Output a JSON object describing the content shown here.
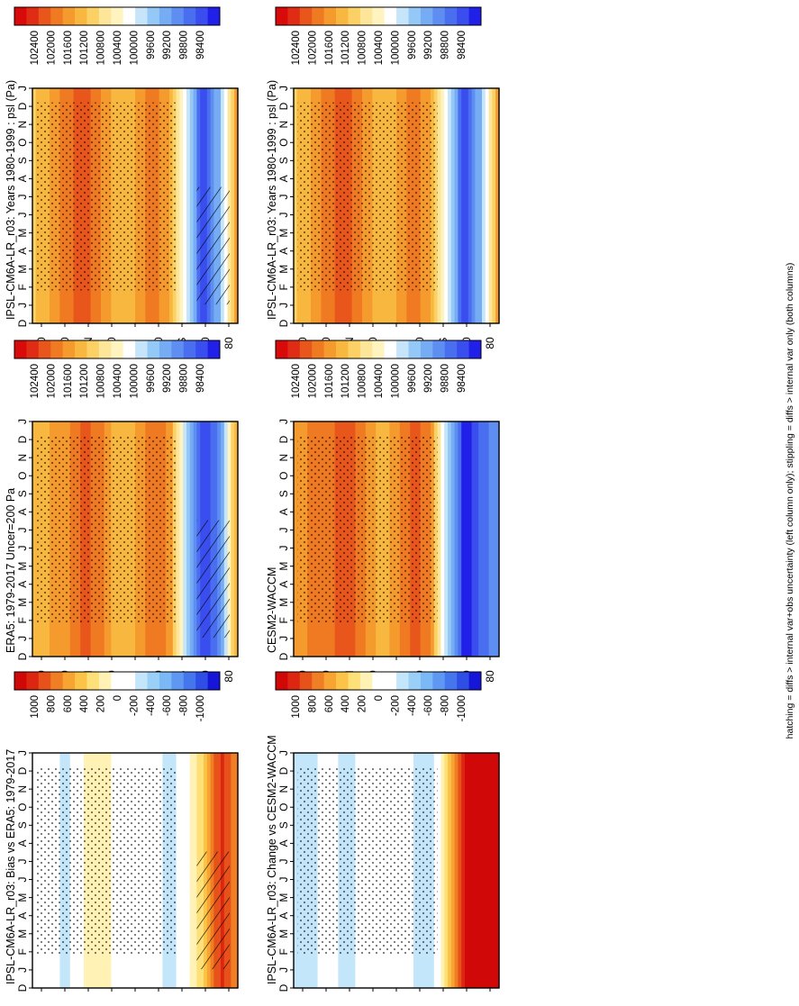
{
  "figure": {
    "footnote": "hatching = diffs > internal var+obs uncertainty (left column only); stippling = diffs > internal var only (both columns)"
  },
  "colors": {
    "abs_scale": [
      "#2020e8",
      "#3a4ef0",
      "#4a6ef0",
      "#5f8ef2",
      "#76acf4",
      "#94c8f6",
      "#c6e4fa",
      "#ffffff",
      "#fff4c0",
      "#fde69a",
      "#fbd065",
      "#f8b840",
      "#f59a2c",
      "#ef7a22",
      "#e8561c",
      "#e02c14",
      "#d80a0a"
    ],
    "diff_scale": [
      "#1616d8",
      "#2e4ee6",
      "#4676ee",
      "#5e98f2",
      "#7ab8f6",
      "#9ad0f8",
      "#c4e6fb",
      "#ffffff",
      "#ffffff",
      "#fff2b4",
      "#fde078",
      "#fbc448",
      "#f7a432",
      "#f07e24",
      "#e6521a",
      "#dc2612",
      "#d00808"
    ]
  },
  "chart_data": [
    {
      "type": "heatmap",
      "panel": "left-top",
      "title": "IPSL-CM6A-LR_r03: Years 1980-1999 : psl (Pa)",
      "xlabel": "",
      "ylabel": "",
      "x_ticks": [
        "D",
        "J",
        "F",
        "M",
        "A",
        "M",
        "J",
        "J",
        "A",
        "S",
        "O",
        "N",
        "D",
        "J"
      ],
      "y_ticks": [
        "80",
        "60",
        "°N",
        "20",
        "0",
        "20",
        "°S",
        "60",
        "80"
      ],
      "colorbar_ticks": [
        "102400",
        "102000",
        "101600",
        "101200",
        "100800",
        "100400",
        "100000",
        "99600",
        "99200",
        "98800",
        "98400"
      ],
      "colorbar_range": [
        98200,
        102600
      ],
      "hatching": true,
      "stippling": true,
      "latitudes": [
        90,
        75,
        60,
        45,
        30,
        15,
        0,
        -15,
        -30,
        -45,
        -60,
        -75,
        -90
      ],
      "values_by_latitude": [
        101000,
        101300,
        101700,
        102000,
        101600,
        101100,
        101300,
        101800,
        101300,
        100000,
        98500,
        99600,
        101600
      ]
    },
    {
      "type": "heatmap",
      "panel": "left-middle",
      "title": "ERA5: 1979-2017 Uncer=200 Pa",
      "xlabel": "",
      "ylabel": "",
      "x_ticks": [
        "D",
        "J",
        "F",
        "M",
        "A",
        "M",
        "J",
        "J",
        "A",
        "S",
        "O",
        "N",
        "D",
        "J"
      ],
      "y_ticks": [
        "80",
        "60",
        "°N",
        "20",
        "0",
        "20",
        "°S",
        "60",
        "80"
      ],
      "colorbar_ticks": [
        "102400",
        "102000",
        "101600",
        "101200",
        "100800",
        "100400",
        "100000",
        "99600",
        "99200",
        "98800",
        "98400"
      ],
      "colorbar_range": [
        98200,
        102600
      ],
      "hatching": true,
      "stippling": true,
      "latitudes": [
        90,
        75,
        60,
        45,
        30,
        15,
        0,
        -15,
        -30,
        -45,
        -60,
        -75,
        -90
      ],
      "values_by_latitude": [
        101100,
        101300,
        101500,
        101900,
        101700,
        101100,
        101300,
        101800,
        101500,
        99800,
        98400,
        99200,
        101500
      ]
    },
    {
      "type": "heatmap",
      "panel": "left-bottom",
      "title": "IPSL-CM6A-LR_r03: Bias vs ERA5: 1979-2017",
      "xlabel": "",
      "ylabel": "",
      "x_ticks": [
        "D",
        "J",
        "F",
        "M",
        "A",
        "M",
        "J",
        "J",
        "A",
        "S",
        "O",
        "N",
        "D",
        "J"
      ],
      "y_ticks": [
        "80",
        "60",
        "°N",
        "20",
        "0",
        "20",
        "°S",
        "60",
        "80"
      ],
      "colorbar_ticks": [
        "1000",
        "800",
        "600",
        "400",
        "200",
        "0",
        "-200",
        "-400",
        "-600",
        "-800",
        "-1000"
      ],
      "colorbar_range": [
        -1100,
        1100
      ],
      "hatching": true,
      "stippling": true,
      "latitudes": [
        90,
        75,
        60,
        45,
        30,
        15,
        0,
        -15,
        -30,
        -45,
        -60,
        -75,
        -90
      ],
      "values_by_latitude": [
        -100,
        0,
        -300,
        100,
        200,
        0,
        0,
        0,
        -300,
        0,
        300,
        900,
        600
      ]
    },
    {
      "type": "heatmap",
      "panel": "right-top",
      "title": "IPSL-CM6A-LR_r03: Years 1980-1999 : psl (Pa)",
      "xlabel": "",
      "ylabel": "",
      "x_ticks": [
        "D",
        "J",
        "F",
        "M",
        "A",
        "M",
        "J",
        "J",
        "A",
        "S",
        "O",
        "N",
        "D",
        "J"
      ],
      "y_ticks": [
        "80",
        "60",
        "°N",
        "20",
        "0",
        "20",
        "°S",
        "60",
        "80"
      ],
      "colorbar_ticks": [
        "102400",
        "102000",
        "101600",
        "101200",
        "100800",
        "100400",
        "100000",
        "99600",
        "99200",
        "98800",
        "98400"
      ],
      "colorbar_range": [
        98200,
        102600
      ],
      "hatching": false,
      "stippling": true,
      "latitudes": [
        90,
        75,
        60,
        45,
        30,
        15,
        0,
        -15,
        -30,
        -45,
        -60,
        -75,
        -90
      ],
      "values_by_latitude": [
        101000,
        101300,
        101700,
        102000,
        101600,
        101100,
        101300,
        101800,
        101300,
        100000,
        98500,
        99600,
        101600
      ]
    },
    {
      "type": "heatmap",
      "panel": "right-middle",
      "title": "CESM2-WACCM",
      "xlabel": "",
      "ylabel": "",
      "x_ticks": [
        "D",
        "J",
        "F",
        "M",
        "A",
        "M",
        "J",
        "J",
        "A",
        "S",
        "O",
        "N",
        "D",
        "J"
      ],
      "y_ticks": [
        "80",
        "60",
        "°N",
        "20",
        "0",
        "20",
        "°S",
        "60",
        "80"
      ],
      "colorbar_ticks": [
        "102400",
        "102000",
        "101600",
        "101200",
        "100800",
        "100400",
        "100000",
        "99600",
        "99200",
        "98800",
        "98400"
      ],
      "colorbar_range": [
        98200,
        102600
      ],
      "hatching": false,
      "stippling": true,
      "latitudes": [
        90,
        75,
        60,
        45,
        30,
        15,
        0,
        -15,
        -30,
        -45,
        -60,
        -75,
        -90
      ],
      "values_by_latitude": [
        101300,
        101600,
        101700,
        102100,
        101700,
        101200,
        101400,
        102000,
        101600,
        99700,
        98300,
        98800,
        99200
      ]
    },
    {
      "type": "heatmap",
      "panel": "right-bottom",
      "title": "IPSL-CM6A-LR_r03: Change vs CESM2-WACCM",
      "xlabel": "",
      "ylabel": "",
      "x_ticks": [
        "D",
        "J",
        "F",
        "M",
        "A",
        "M",
        "J",
        "J",
        "A",
        "S",
        "O",
        "N",
        "D",
        "J"
      ],
      "y_ticks": [
        "80",
        "60",
        "°N",
        "20",
        "0",
        "20",
        "°S",
        "60",
        "80"
      ],
      "colorbar_ticks": [
        "1000",
        "800",
        "600",
        "400",
        "200",
        "0",
        "-200",
        "-400",
        "-600",
        "-800",
        "-1000"
      ],
      "colorbar_range": [
        -1100,
        1100
      ],
      "hatching": false,
      "stippling": true,
      "latitudes": [
        90,
        75,
        60,
        45,
        30,
        15,
        0,
        -15,
        -30,
        -45,
        -60,
        -75,
        -90
      ],
      "values_by_latitude": [
        -300,
        -300,
        0,
        -300,
        -100,
        0,
        0,
        -200,
        -300,
        300,
        1000,
        1100,
        1100
      ]
    }
  ]
}
